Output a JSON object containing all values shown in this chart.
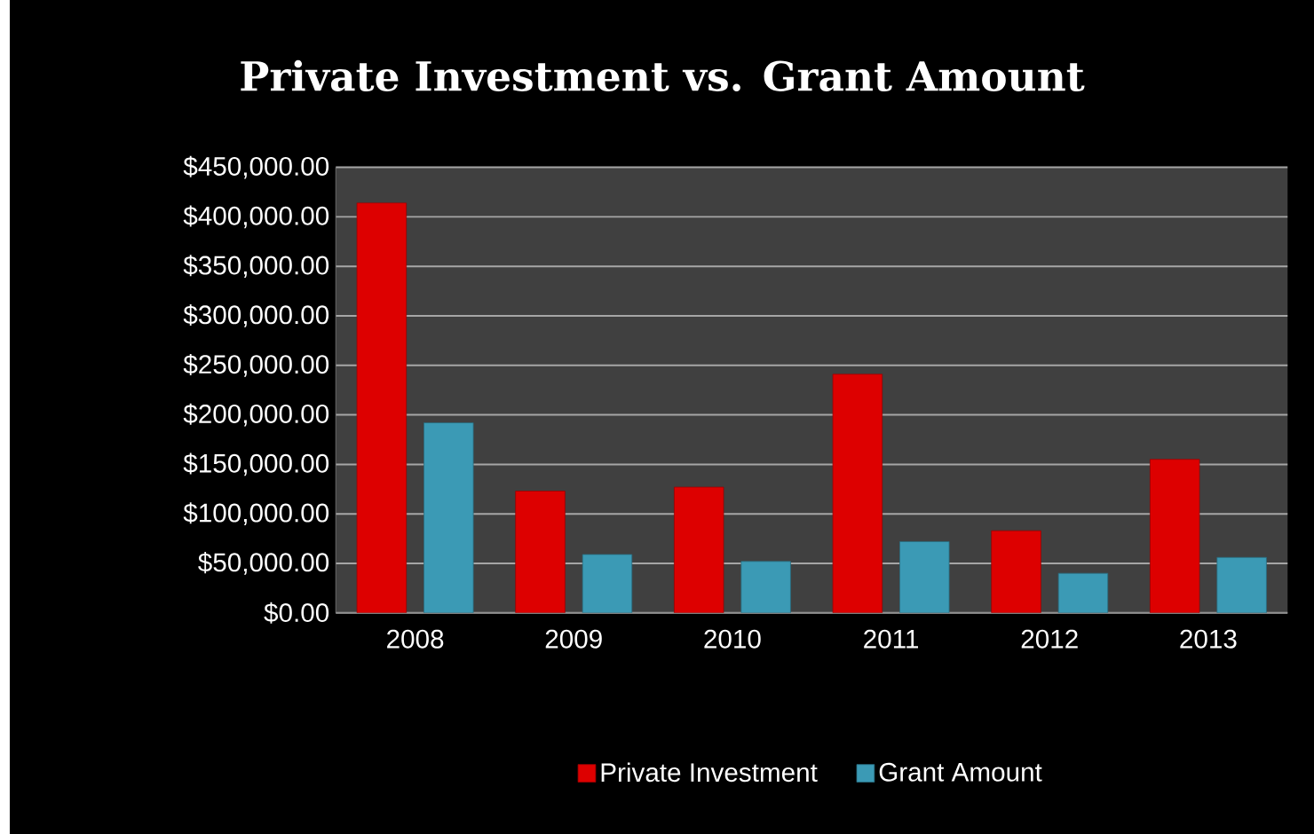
{
  "chart_data": {
    "type": "bar",
    "title": "Private Investment vs. Grant Amount",
    "categories": [
      "2008",
      "2009",
      "2010",
      "2011",
      "2012",
      "2013"
    ],
    "series": [
      {
        "name": "Private Investment",
        "color": "#dd0000",
        "values": [
          414000,
          123000,
          127000,
          241000,
          83000,
          155000
        ]
      },
      {
        "name": "Grant Amount",
        "color": "#3b9ab5",
        "values": [
          192000,
          59000,
          52000,
          72000,
          40000,
          56000
        ]
      }
    ],
    "ylim": [
      0,
      450000
    ],
    "yticks": [
      {
        "value": 0,
        "label": "$0.00"
      },
      {
        "value": 50000,
        "label": "$50,000.00"
      },
      {
        "value": 100000,
        "label": "$100,000.00"
      },
      {
        "value": 150000,
        "label": "$150,000.00"
      },
      {
        "value": 200000,
        "label": "$200,000.00"
      },
      {
        "value": 250000,
        "label": "$250,000.00"
      },
      {
        "value": 300000,
        "label": "$300,000.00"
      },
      {
        "value": 350000,
        "label": "$350,000.00"
      },
      {
        "value": 400000,
        "label": "$400,000.00"
      },
      {
        "value": 450000,
        "label": "$450,000.00"
      }
    ],
    "grid": "y",
    "legend": "bottom"
  }
}
